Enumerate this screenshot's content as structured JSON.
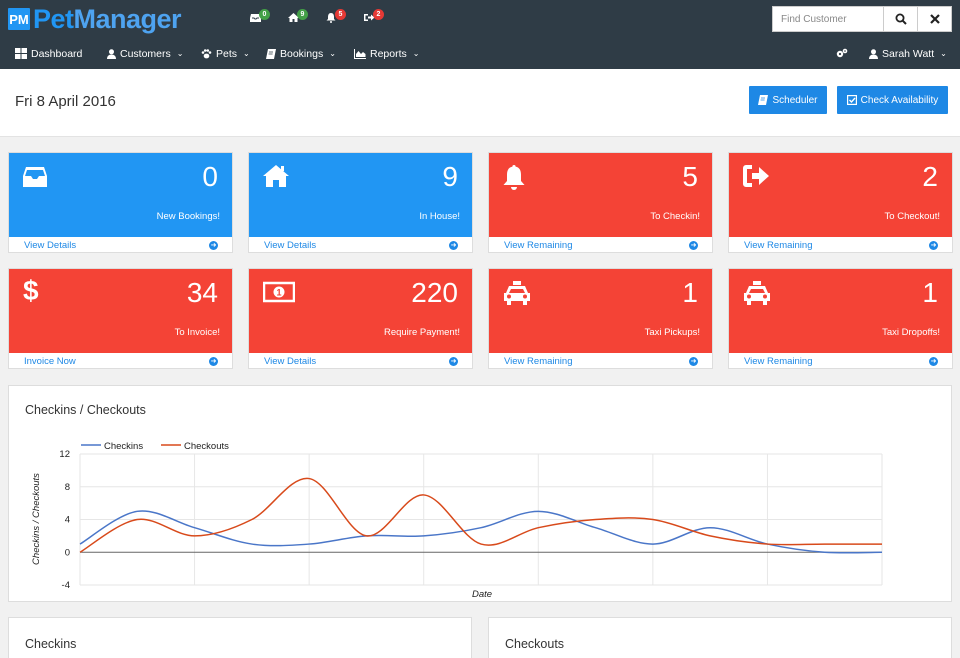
{
  "app": {
    "logo_badge": "PM",
    "logo_pet": "Pet",
    "logo_manager": "Manager"
  },
  "notifications": [
    {
      "icon": "inbox-icon",
      "count": "0",
      "color": "#43a047"
    },
    {
      "icon": "home-icon",
      "count": "9",
      "color": "#43a047"
    },
    {
      "icon": "bell-icon",
      "count": "5",
      "color": "#e53935"
    },
    {
      "icon": "sign-out-icon",
      "count": "2",
      "color": "#e53935"
    }
  ],
  "search": {
    "placeholder": "Find Customer",
    "value": ""
  },
  "nav": {
    "dashboard": "Dashboard",
    "customers": "Customers",
    "pets": "Pets",
    "bookings": "Bookings",
    "reports": "Reports",
    "user": "Sarah Watt"
  },
  "page": {
    "date": "Fri 8 April 2016",
    "scheduler_label": "Scheduler",
    "check_availability_label": "Check Availability"
  },
  "tiles": [
    {
      "icon": "inbox-icon",
      "value": "0",
      "label": "New Bookings!",
      "link": "View Details",
      "color": "#2196f3"
    },
    {
      "icon": "home-icon",
      "value": "9",
      "label": "In House!",
      "link": "View Details",
      "color": "#2196f3"
    },
    {
      "icon": "bell-icon",
      "value": "5",
      "label": "To Checkin!",
      "link": "View Remaining",
      "color": "#f44336"
    },
    {
      "icon": "sign-out-icon",
      "value": "2",
      "label": "To Checkout!",
      "link": "View Remaining",
      "color": "#f44336"
    },
    {
      "icon": "dollar-icon",
      "value": "34",
      "label": "To Invoice!",
      "link": "Invoice Now",
      "color": "#f44336"
    },
    {
      "icon": "money-icon",
      "value": "220",
      "label": "Require Payment!",
      "link": "View Details",
      "color": "#f44336"
    },
    {
      "icon": "taxi-icon",
      "value": "1",
      "label": "Taxi Pickups!",
      "link": "View Remaining",
      "color": "#f44336"
    },
    {
      "icon": "taxi-icon",
      "value": "1",
      "label": "Taxi Dropoffs!",
      "link": "View Remaining",
      "color": "#f44336"
    }
  ],
  "chart_panel": {
    "title": "Checkins / Checkouts"
  },
  "chart_data": {
    "type": "line",
    "xlabel": "Date",
    "ylabel": "Checkins / Checkouts",
    "ylim": [
      -4,
      12
    ],
    "yticks": [
      "12",
      "8",
      "4",
      "0",
      "-4"
    ],
    "grid": true,
    "legend": "top-left",
    "series": [
      {
        "name": "Checkins",
        "color": "#4a76c8",
        "values": [
          1,
          5,
          3,
          1,
          1,
          2,
          2,
          3,
          5,
          3,
          1,
          3,
          1,
          0,
          0
        ]
      },
      {
        "name": "Checkouts",
        "color": "#d84a1b",
        "values": [
          0,
          4,
          2,
          4,
          9,
          2,
          7,
          1,
          3,
          4,
          4,
          2,
          1,
          1,
          1
        ]
      }
    ]
  },
  "bottom_panels": {
    "checkins_title": "Checkins",
    "checkouts_title": "Checkouts"
  }
}
